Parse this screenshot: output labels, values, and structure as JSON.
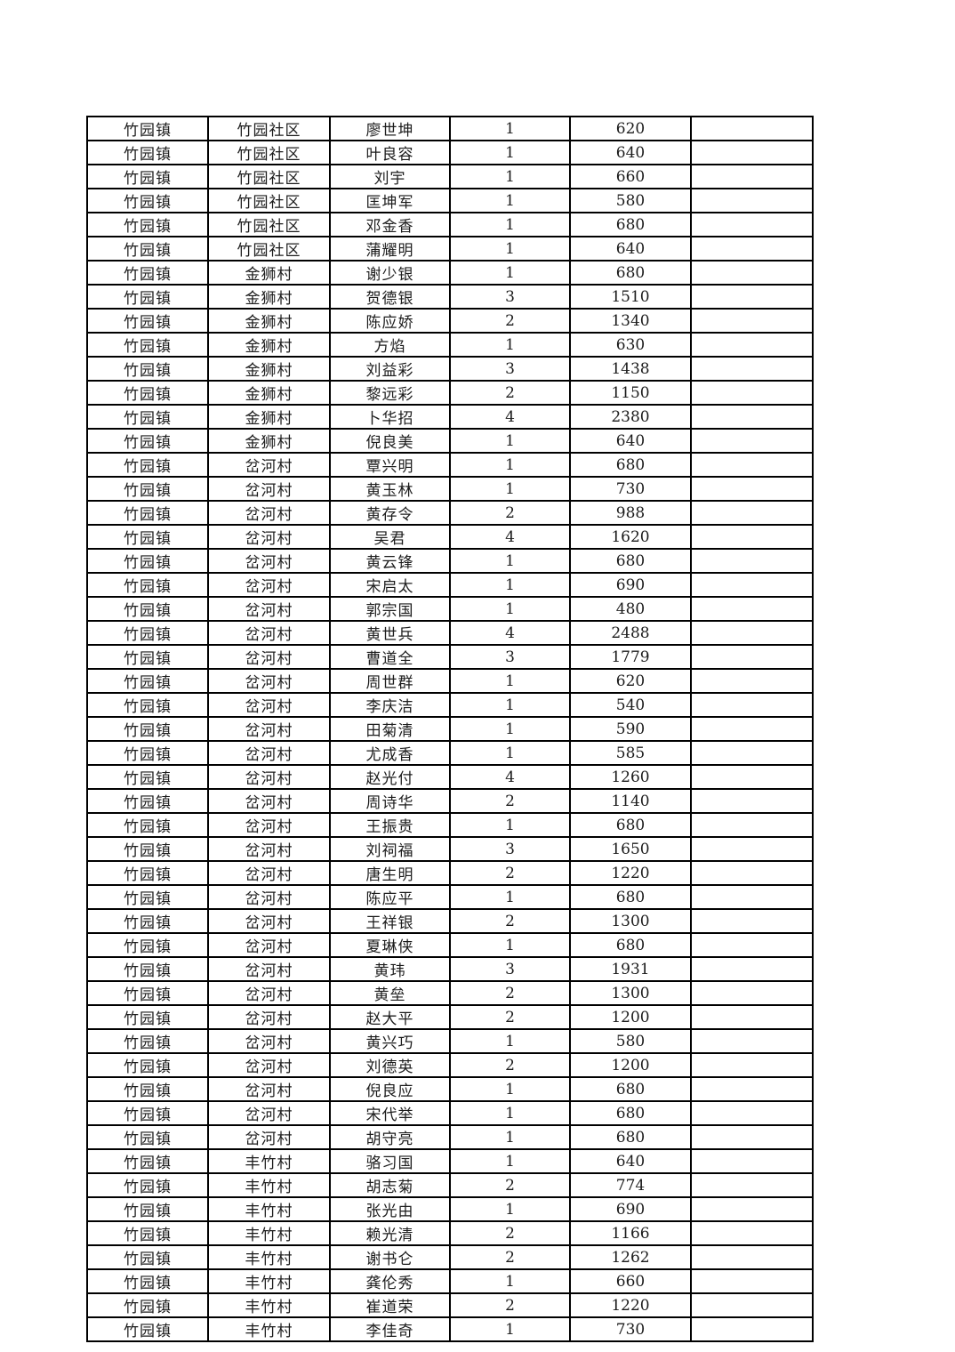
{
  "table": {
    "fields": [
      "town",
      "village",
      "person",
      "count",
      "amount",
      "note"
    ],
    "rows": [
      {
        "town": "竹园镇",
        "village": "竹园社区",
        "person": "廖世坤",
        "count": "1",
        "amount": "620",
        "note": ""
      },
      {
        "town": "竹园镇",
        "village": "竹园社区",
        "person": "叶良容",
        "count": "1",
        "amount": "640",
        "note": ""
      },
      {
        "town": "竹园镇",
        "village": "竹园社区",
        "person": "刘宇",
        "count": "1",
        "amount": "660",
        "note": ""
      },
      {
        "town": "竹园镇",
        "village": "竹园社区",
        "person": "匡坤军",
        "count": "1",
        "amount": "580",
        "note": ""
      },
      {
        "town": "竹园镇",
        "village": "竹园社区",
        "person": "邓金香",
        "count": "1",
        "amount": "680",
        "note": ""
      },
      {
        "town": "竹园镇",
        "village": "竹园社区",
        "person": "蒲耀明",
        "count": "1",
        "amount": "640",
        "note": ""
      },
      {
        "town": "竹园镇",
        "village": "金狮村",
        "person": "谢少银",
        "count": "1",
        "amount": "680",
        "note": ""
      },
      {
        "town": "竹园镇",
        "village": "金狮村",
        "person": "贺德银",
        "count": "3",
        "amount": "1510",
        "note": ""
      },
      {
        "town": "竹园镇",
        "village": "金狮村",
        "person": "陈应娇",
        "count": "2",
        "amount": "1340",
        "note": ""
      },
      {
        "town": "竹园镇",
        "village": "金狮村",
        "person": "方焰",
        "count": "1",
        "amount": "630",
        "note": ""
      },
      {
        "town": "竹园镇",
        "village": "金狮村",
        "person": "刘益彩",
        "count": "3",
        "amount": "1438",
        "note": ""
      },
      {
        "town": "竹园镇",
        "village": "金狮村",
        "person": "黎远彩",
        "count": "2",
        "amount": "1150",
        "note": ""
      },
      {
        "town": "竹园镇",
        "village": "金狮村",
        "person": "卜华招",
        "count": "4",
        "amount": "2380",
        "note": ""
      },
      {
        "town": "竹园镇",
        "village": "金狮村",
        "person": "倪良美",
        "count": "1",
        "amount": "640",
        "note": ""
      },
      {
        "town": "竹园镇",
        "village": "岔河村",
        "person": "覃兴明",
        "count": "1",
        "amount": "680",
        "note": ""
      },
      {
        "town": "竹园镇",
        "village": "岔河村",
        "person": "黄玉林",
        "count": "1",
        "amount": "730",
        "note": ""
      },
      {
        "town": "竹园镇",
        "village": "岔河村",
        "person": "黄存令",
        "count": "2",
        "amount": "988",
        "note": ""
      },
      {
        "town": "竹园镇",
        "village": "岔河村",
        "person": "吴君",
        "count": "4",
        "amount": "1620",
        "note": ""
      },
      {
        "town": "竹园镇",
        "village": "岔河村",
        "person": "黄云锋",
        "count": "1",
        "amount": "680",
        "note": ""
      },
      {
        "town": "竹园镇",
        "village": "岔河村",
        "person": "宋启太",
        "count": "1",
        "amount": "690",
        "note": ""
      },
      {
        "town": "竹园镇",
        "village": "岔河村",
        "person": "郭宗国",
        "count": "1",
        "amount": "480",
        "note": ""
      },
      {
        "town": "竹园镇",
        "village": "岔河村",
        "person": "黄世兵",
        "count": "4",
        "amount": "2488",
        "note": ""
      },
      {
        "town": "竹园镇",
        "village": "岔河村",
        "person": "曹道全",
        "count": "3",
        "amount": "1779",
        "note": ""
      },
      {
        "town": "竹园镇",
        "village": "岔河村",
        "person": "周世群",
        "count": "1",
        "amount": "620",
        "note": ""
      },
      {
        "town": "竹园镇",
        "village": "岔河村",
        "person": "李庆洁",
        "count": "1",
        "amount": "540",
        "note": ""
      },
      {
        "town": "竹园镇",
        "village": "岔河村",
        "person": "田菊清",
        "count": "1",
        "amount": "590",
        "note": ""
      },
      {
        "town": "竹园镇",
        "village": "岔河村",
        "person": "尤成香",
        "count": "1",
        "amount": "585",
        "note": ""
      },
      {
        "town": "竹园镇",
        "village": "岔河村",
        "person": "赵光付",
        "count": "4",
        "amount": "1260",
        "note": ""
      },
      {
        "town": "竹园镇",
        "village": "岔河村",
        "person": "周诗华",
        "count": "2",
        "amount": "1140",
        "note": ""
      },
      {
        "town": "竹园镇",
        "village": "岔河村",
        "person": "王振贵",
        "count": "1",
        "amount": "680",
        "note": ""
      },
      {
        "town": "竹园镇",
        "village": "岔河村",
        "person": "刘祠福",
        "count": "3",
        "amount": "1650",
        "note": ""
      },
      {
        "town": "竹园镇",
        "village": "岔河村",
        "person": "唐生明",
        "count": "2",
        "amount": "1220",
        "note": ""
      },
      {
        "town": "竹园镇",
        "village": "岔河村",
        "person": "陈应平",
        "count": "1",
        "amount": "680",
        "note": ""
      },
      {
        "town": "竹园镇",
        "village": "岔河村",
        "person": "王祥银",
        "count": "2",
        "amount": "1300",
        "note": ""
      },
      {
        "town": "竹园镇",
        "village": "岔河村",
        "person": "夏琳侠",
        "count": "1",
        "amount": "680",
        "note": ""
      },
      {
        "town": "竹园镇",
        "village": "岔河村",
        "person": "黄玮",
        "count": "3",
        "amount": "1931",
        "note": ""
      },
      {
        "town": "竹园镇",
        "village": "岔河村",
        "person": "黄垒",
        "count": "2",
        "amount": "1300",
        "note": ""
      },
      {
        "town": "竹园镇",
        "village": "岔河村",
        "person": "赵大平",
        "count": "2",
        "amount": "1200",
        "note": ""
      },
      {
        "town": "竹园镇",
        "village": "岔河村",
        "person": "黄兴巧",
        "count": "1",
        "amount": "580",
        "note": ""
      },
      {
        "town": "竹园镇",
        "village": "岔河村",
        "person": "刘德英",
        "count": "2",
        "amount": "1200",
        "note": ""
      },
      {
        "town": "竹园镇",
        "village": "岔河村",
        "person": "倪良应",
        "count": "1",
        "amount": "680",
        "note": ""
      },
      {
        "town": "竹园镇",
        "village": "岔河村",
        "person": "宋代举",
        "count": "1",
        "amount": "680",
        "note": ""
      },
      {
        "town": "竹园镇",
        "village": "岔河村",
        "person": "胡守亮",
        "count": "1",
        "amount": "680",
        "note": ""
      },
      {
        "town": "竹园镇",
        "village": "丰竹村",
        "person": "骆习国",
        "count": "1",
        "amount": "640",
        "note": ""
      },
      {
        "town": "竹园镇",
        "village": "丰竹村",
        "person": "胡志菊",
        "count": "2",
        "amount": "774",
        "note": ""
      },
      {
        "town": "竹园镇",
        "village": "丰竹村",
        "person": "张光由",
        "count": "1",
        "amount": "690",
        "note": ""
      },
      {
        "town": "竹园镇",
        "village": "丰竹村",
        "person": "赖光清",
        "count": "2",
        "amount": "1166",
        "note": ""
      },
      {
        "town": "竹园镇",
        "village": "丰竹村",
        "person": "谢书仑",
        "count": "2",
        "amount": "1262",
        "note": ""
      },
      {
        "town": "竹园镇",
        "village": "丰竹村",
        "person": "龚伦秀",
        "count": "1",
        "amount": "660",
        "note": ""
      },
      {
        "town": "竹园镇",
        "village": "丰竹村",
        "person": "崔道荣",
        "count": "2",
        "amount": "1220",
        "note": ""
      },
      {
        "town": "竹园镇",
        "village": "丰竹村",
        "person": "李佳奇",
        "count": "1",
        "amount": "730",
        "note": ""
      }
    ]
  }
}
